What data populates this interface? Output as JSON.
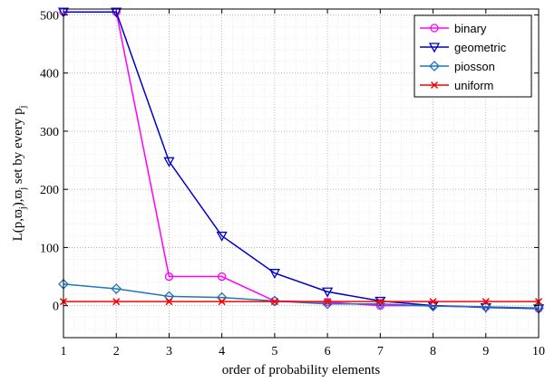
{
  "chart_data": {
    "type": "line",
    "xlabel": "order of probability elements",
    "ylabel": "L(p,ϖ",
    "ylabel_sub1": "j",
    "ylabel_mid": "),ϖ",
    "ylabel_sub2": "j",
    "ylabel_tail": " set by every p",
    "ylabel_sub3": "j",
    "x": [
      1,
      2,
      3,
      4,
      5,
      6,
      7,
      8,
      9,
      10
    ],
    "xlim": [
      1,
      10
    ],
    "ylim": [
      -55,
      510
    ],
    "xticks": [
      1,
      2,
      3,
      4,
      5,
      6,
      7,
      8,
      9,
      10
    ],
    "yticks": [
      0,
      100,
      200,
      300,
      400,
      500
    ],
    "grid": true,
    "minor_grid": true,
    "legend_position": "top-right",
    "series": [
      {
        "name": "binary",
        "color": "#ff00ff",
        "marker": "circle",
        "values": [
          505,
          505,
          50,
          50,
          8,
          6,
          0,
          0,
          -2,
          -5
        ]
      },
      {
        "name": "geometric",
        "color": "#0000cc",
        "marker": "triangle-down",
        "values": [
          505,
          505,
          248,
          120,
          56,
          24,
          8,
          0,
          -3,
          -5
        ]
      },
      {
        "name": "piosson",
        "color": "#1f77b4",
        "marker": "diamond",
        "values": [
          37,
          29,
          16,
          14,
          8,
          3,
          3,
          -1,
          -2,
          -4
        ]
      },
      {
        "name": "uniform",
        "color": "#ff0000",
        "marker": "x",
        "values": [
          7,
          7,
          7,
          7,
          7,
          7,
          7,
          7,
          7,
          7
        ]
      }
    ]
  }
}
